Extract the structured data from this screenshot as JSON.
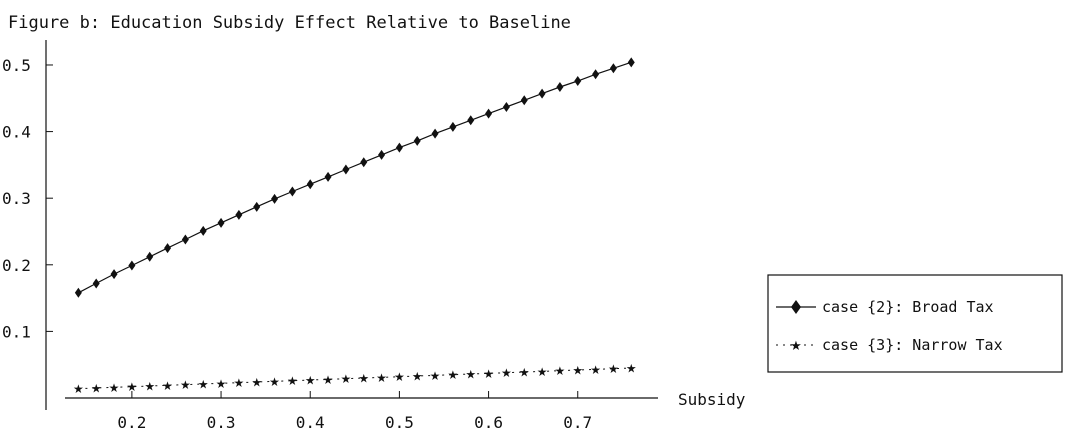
{
  "chart_data": {
    "type": "line",
    "title": "Figure b: Education Subsidy Effect Relative to Baseline",
    "xlabel": "Subsidy",
    "ylabel": "",
    "xlim": [
      0.125,
      0.79
    ],
    "ylim": [
      0.0,
      0.53
    ],
    "x_ticks": [
      0.2,
      0.3,
      0.4,
      0.5,
      0.6,
      0.7
    ],
    "x_tick_labels": [
      "0.2",
      "0.3",
      "0.4",
      "0.5",
      "0.6",
      "0.7"
    ],
    "y_ticks": [
      0.1,
      0.2,
      0.3,
      0.4,
      0.5
    ],
    "y_tick_labels": [
      "0.1",
      "0.2",
      "0.3",
      "0.4",
      "0.5"
    ],
    "grid": false,
    "legend_position": "right",
    "x": [
      0.14,
      0.16,
      0.18,
      0.2,
      0.22,
      0.24,
      0.26,
      0.28,
      0.3,
      0.32,
      0.34,
      0.36,
      0.38,
      0.4,
      0.42,
      0.44,
      0.46,
      0.48,
      0.5,
      0.52,
      0.54,
      0.56,
      0.58,
      0.6,
      0.62,
      0.64,
      0.66,
      0.68,
      0.7,
      0.72,
      0.74,
      0.76
    ],
    "series": [
      {
        "name": "case {2}: Broad Tax",
        "marker": "diamond",
        "values": [
          0.158,
          0.172,
          0.186,
          0.199,
          0.212,
          0.225,
          0.238,
          0.251,
          0.263,
          0.275,
          0.287,
          0.299,
          0.31,
          0.321,
          0.332,
          0.343,
          0.354,
          0.365,
          0.376,
          0.386,
          0.397,
          0.407,
          0.417,
          0.427,
          0.437,
          0.447,
          0.457,
          0.467,
          0.476,
          0.486,
          0.495,
          0.504
        ]
      },
      {
        "name": "case {3}: Narrow Tax",
        "marker": "star",
        "values": [
          0.014,
          0.015,
          0.016,
          0.017,
          0.018,
          0.019,
          0.02,
          0.021,
          0.022,
          0.023,
          0.024,
          0.025,
          0.026,
          0.027,
          0.028,
          0.029,
          0.03,
          0.031,
          0.032,
          0.033,
          0.034,
          0.035,
          0.036,
          0.037,
          0.038,
          0.039,
          0.04,
          0.041,
          0.042,
          0.043,
          0.044,
          0.045
        ]
      }
    ],
    "colors": {
      "line": "#111111",
      "background": "#ffffff"
    }
  }
}
